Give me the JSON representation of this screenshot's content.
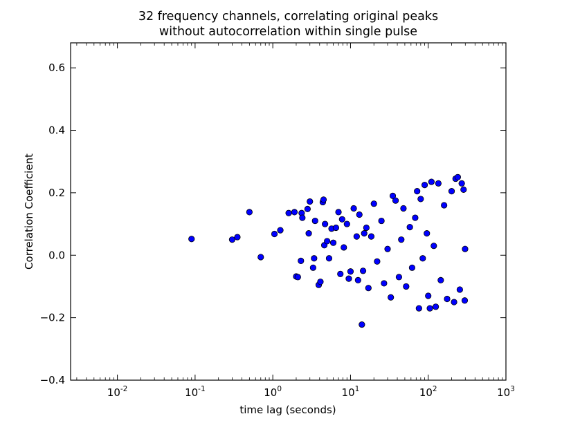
{
  "chart_data": {
    "type": "scatter",
    "title_line_1": "32 frequency channels, correlating original peaks",
    "title_line_2": "without autocorrelation within single pulse",
    "xlabel": "time lag (seconds)",
    "ylabel": "Correlation Coefficient",
    "xscale": "log",
    "xlim": [
      0.0025,
      1000
    ],
    "ylim": [
      -0.4,
      0.68
    ],
    "x_ticks": [
      {
        "value": 0.01,
        "base": "10",
        "exp": "-2"
      },
      {
        "value": 0.1,
        "base": "10",
        "exp": "-1"
      },
      {
        "value": 1,
        "base": "10",
        "exp": "0"
      },
      {
        "value": 10,
        "base": "10",
        "exp": "1"
      },
      {
        "value": 100,
        "base": "10",
        "exp": "2"
      },
      {
        "value": 1000,
        "base": "10",
        "exp": "3"
      }
    ],
    "y_ticks": [
      {
        "value": -0.4,
        "label": "−0.4"
      },
      {
        "value": -0.2,
        "label": "−0.2"
      },
      {
        "value": 0.0,
        "label": "0.0"
      },
      {
        "value": 0.2,
        "label": "0.2"
      },
      {
        "value": 0.4,
        "label": "0.4"
      },
      {
        "value": 0.6,
        "label": "0.6"
      }
    ],
    "grid": false,
    "marker_color": "#0000ff",
    "marker_edge_color": "#000000",
    "series": [
      {
        "points": [
          [
            0.09,
            0.052
          ],
          [
            0.3,
            0.05
          ],
          [
            0.35,
            0.058
          ],
          [
            0.5,
            0.138
          ],
          [
            0.7,
            -0.006
          ],
          [
            1.05,
            0.068
          ],
          [
            1.25,
            0.08
          ],
          [
            1.6,
            0.135
          ],
          [
            1.9,
            0.138
          ],
          [
            2.0,
            -0.068
          ],
          [
            2.1,
            -0.07
          ],
          [
            2.3,
            -0.018
          ],
          [
            2.35,
            0.135
          ],
          [
            2.4,
            0.12
          ],
          [
            2.8,
            0.148
          ],
          [
            2.9,
            0.07
          ],
          [
            3.0,
            0.172
          ],
          [
            3.3,
            -0.04
          ],
          [
            3.4,
            -0.01
          ],
          [
            3.5,
            0.11
          ],
          [
            3.9,
            -0.095
          ],
          [
            4.1,
            -0.085
          ],
          [
            4.4,
            0.17
          ],
          [
            4.5,
            0.178
          ],
          [
            4.6,
            0.032
          ],
          [
            4.7,
            0.1
          ],
          [
            5.0,
            0.045
          ],
          [
            5.3,
            -0.01
          ],
          [
            5.7,
            0.085
          ],
          [
            6.0,
            0.04
          ],
          [
            6.5,
            0.088
          ],
          [
            7.0,
            0.138
          ],
          [
            7.4,
            -0.06
          ],
          [
            7.8,
            0.115
          ],
          [
            8.2,
            0.025
          ],
          [
            9.0,
            0.1
          ],
          [
            9.5,
            -0.075
          ],
          [
            10.0,
            -0.052
          ],
          [
            11.0,
            0.15
          ],
          [
            12.0,
            0.06
          ],
          [
            12.5,
            -0.08
          ],
          [
            13.0,
            0.13
          ],
          [
            14.0,
            -0.222
          ],
          [
            14.5,
            -0.05
          ],
          [
            15.0,
            0.07
          ],
          [
            16.0,
            0.088
          ],
          [
            17.0,
            -0.105
          ],
          [
            18.5,
            0.06
          ],
          [
            20.0,
            0.165
          ],
          [
            22.0,
            -0.02
          ],
          [
            25.0,
            0.11
          ],
          [
            27.0,
            -0.09
          ],
          [
            30.0,
            0.02
          ],
          [
            33.0,
            -0.135
          ],
          [
            35.0,
            0.19
          ],
          [
            38.0,
            0.175
          ],
          [
            42.0,
            -0.07
          ],
          [
            45.0,
            0.05
          ],
          [
            48.0,
            0.15
          ],
          [
            52.0,
            -0.1
          ],
          [
            58.0,
            0.09
          ],
          [
            62.0,
            -0.04
          ],
          [
            68.0,
            0.12
          ],
          [
            72.0,
            0.205
          ],
          [
            76.0,
            -0.17
          ],
          [
            80.0,
            0.18
          ],
          [
            85.0,
            -0.01
          ],
          [
            90.0,
            0.225
          ],
          [
            96.0,
            0.07
          ],
          [
            100.0,
            -0.13
          ],
          [
            105.0,
            -0.17
          ],
          [
            110.0,
            0.235
          ],
          [
            118.0,
            0.03
          ],
          [
            125.0,
            -0.165
          ],
          [
            135.0,
            0.23
          ],
          [
            145.0,
            -0.08
          ],
          [
            160.0,
            0.16
          ],
          [
            175.0,
            -0.14
          ],
          [
            200.0,
            0.205
          ],
          [
            215.0,
            -0.15
          ],
          [
            225.0,
            0.245
          ],
          [
            240.0,
            0.25
          ],
          [
            255.0,
            -0.11
          ],
          [
            270.0,
            0.23
          ],
          [
            285.0,
            0.21
          ],
          [
            295.0,
            -0.145
          ],
          [
            298.0,
            0.02
          ]
        ]
      }
    ]
  }
}
